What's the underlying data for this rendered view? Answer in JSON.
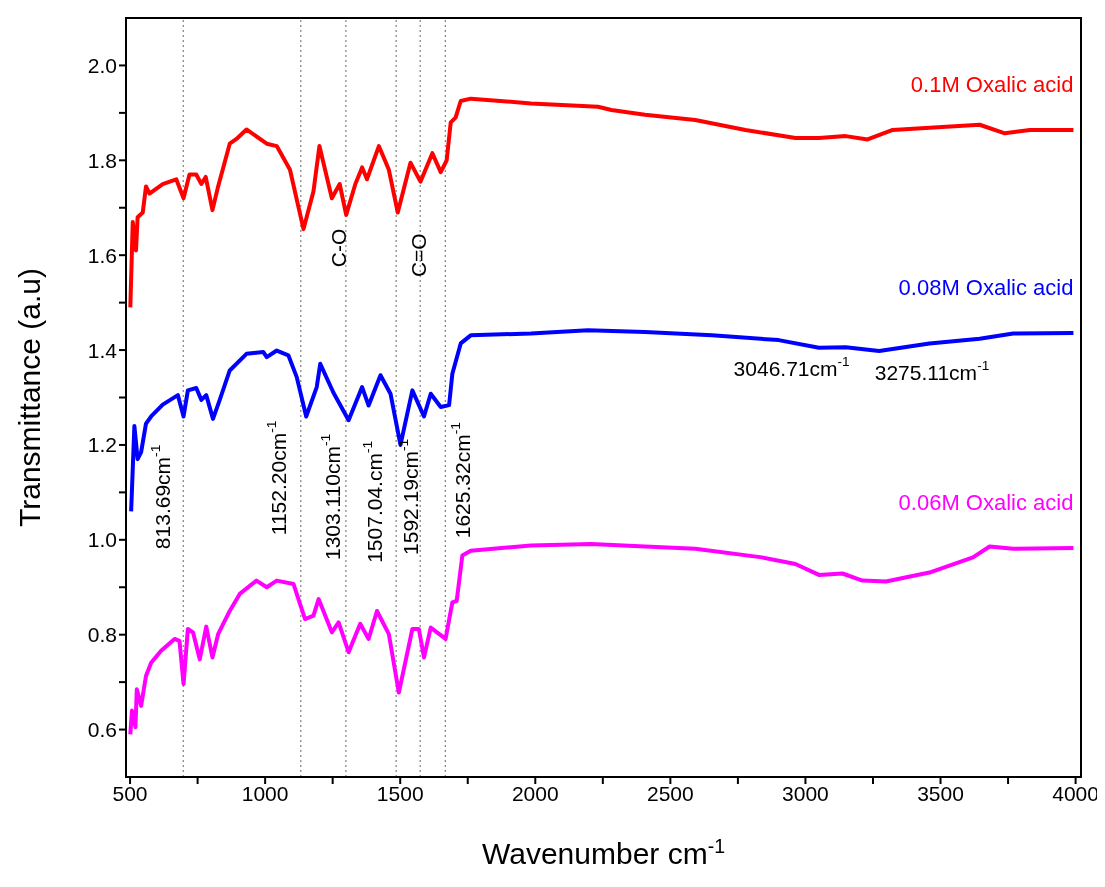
{
  "chart_data": {
    "type": "line",
    "xlabel": "Wavenumber cm$^{-1}$",
    "ylabel": "Transmittance (a.u)",
    "xlim": [
      485,
      4020
    ],
    "ylim": [
      0.5,
      2.1
    ],
    "xticks": [
      500,
      {
        "value": 750,
        "label": null
      },
      1000,
      {
        "value": 1250,
        "label": null
      },
      1500,
      {
        "value": 1750,
        "label": null
      },
      2000,
      {
        "value": 2250,
        "label": null
      },
      2500,
      {
        "value": 2750,
        "label": null
      },
      3000,
      {
        "value": 3250,
        "label": null
      },
      3500,
      {
        "value": 3750,
        "label": null
      },
      4000
    ],
    "yticks": [
      0.6,
      {
        "value": 0.7,
        "label": null
      },
      0.8,
      {
        "value": 0.9,
        "label": null
      },
      {
        "value": 1,
        "label": "1.0"
      },
      {
        "value": 1.1,
        "label": null
      },
      1.2,
      {
        "value": 1.3,
        "label": null
      },
      1.4,
      {
        "value": 1.5,
        "label": null
      },
      1.6,
      {
        "value": 1.7,
        "label": null
      },
      1.8,
      {
        "value": 1.9,
        "label": null
      },
      {
        "value": 2,
        "label": "2.0"
      }
    ],
    "marker": "none",
    "line_style": "solid",
    "series": [
      {
        "name": "0.1M Oxalic acid",
        "color": "#ff0000",
        "x": [
          501,
          510,
          522,
          528,
          547,
          559,
          572,
          621,
          671,
          698,
          720,
          745,
          764,
          780,
          805,
          826,
          869,
          894,
          931,
          1006,
          1043,
          1092,
          1142,
          1179,
          1201,
          1247,
          1276,
          1300,
          1334,
          1359,
          1377,
          1421,
          1458,
          1491,
          1538,
          1575,
          1619,
          1650,
          1672,
          1687,
          1705,
          1724,
          1761,
          1984,
          2232,
          2282,
          2406,
          2592,
          2778,
          2963,
          3050,
          3149,
          3230,
          3323,
          3521,
          3645,
          3738,
          3831,
          3992
        ],
        "values": [
          1.49,
          1.67,
          1.61,
          1.68,
          1.69,
          1.745,
          1.73,
          1.75,
          1.76,
          1.72,
          1.77,
          1.77,
          1.75,
          1.765,
          1.695,
          1.745,
          1.835,
          1.845,
          1.865,
          1.835,
          1.83,
          1.78,
          1.655,
          1.735,
          1.83,
          1.72,
          1.75,
          1.685,
          1.75,
          1.785,
          1.76,
          1.83,
          1.78,
          1.69,
          1.795,
          1.755,
          1.815,
          1.775,
          1.8,
          1.88,
          1.89,
          1.925,
          1.93,
          1.92,
          1.913,
          1.906,
          1.896,
          1.885,
          1.864,
          1.847,
          1.847,
          1.851,
          1.844,
          1.864,
          1.871,
          1.875,
          1.857,
          1.864,
          1.864
        ]
      },
      {
        "name": "0.08M Oxalic acid",
        "color": "#0000ff",
        "x": [
          504,
          516,
          528,
          541,
          559,
          578,
          621,
          677,
          698,
          714,
          745,
          764,
          782,
          807,
          832,
          869,
          931,
          993,
          1006,
          1043,
          1086,
          1117,
          1152,
          1191,
          1204,
          1253,
          1309,
          1359,
          1383,
          1427,
          1464,
          1501,
          1545,
          1588,
          1613,
          1650,
          1681,
          1693,
          1724,
          1761,
          1984,
          2195,
          2406,
          2654,
          2901,
          3050,
          3149,
          3273,
          3459,
          3645,
          3769,
          3992
        ],
        "values": [
          1.06,
          1.24,
          1.17,
          1.185,
          1.245,
          1.26,
          1.285,
          1.305,
          1.26,
          1.315,
          1.32,
          1.295,
          1.305,
          1.255,
          1.295,
          1.357,
          1.392,
          1.396,
          1.385,
          1.399,
          1.389,
          1.343,
          1.26,
          1.322,
          1.371,
          1.31,
          1.252,
          1.322,
          1.283,
          1.347,
          1.308,
          1.2,
          1.315,
          1.26,
          1.308,
          1.28,
          1.284,
          1.35,
          1.414,
          1.431,
          1.435,
          1.442,
          1.438,
          1.431,
          1.421,
          1.405,
          1.406,
          1.398,
          1.414,
          1.424,
          1.435,
          1.436
        ]
      },
      {
        "name": "0.06M Oxalic acid",
        "color": "#ff00ff",
        "x": [
          501,
          507,
          520,
          525,
          541,
          559,
          578,
          615,
          665,
          683,
          698,
          714,
          733,
          758,
          782,
          805,
          826,
          869,
          906,
          968,
          1006,
          1043,
          1105,
          1129,
          1148,
          1179,
          1198,
          1247,
          1272,
          1309,
          1352,
          1383,
          1414,
          1458,
          1495,
          1545,
          1569,
          1588,
          1613,
          1668,
          1693,
          1709,
          1730,
          1761,
          1984,
          2207,
          2406,
          2592,
          2839,
          2963,
          3050,
          3137,
          3211,
          3298,
          3459,
          3620,
          3682,
          3769,
          3992
        ],
        "values": [
          0.59,
          0.64,
          0.605,
          0.685,
          0.65,
          0.713,
          0.741,
          0.766,
          0.791,
          0.787,
          0.696,
          0.812,
          0.805,
          0.748,
          0.817,
          0.752,
          0.801,
          0.85,
          0.886,
          0.914,
          0.9,
          0.914,
          0.907,
          0.865,
          0.833,
          0.84,
          0.875,
          0.805,
          0.826,
          0.763,
          0.823,
          0.791,
          0.85,
          0.801,
          0.678,
          0.812,
          0.812,
          0.752,
          0.815,
          0.791,
          0.868,
          0.871,
          0.967,
          0.977,
          0.988,
          0.991,
          0.986,
          0.981,
          0.963,
          0.949,
          0.926,
          0.929,
          0.914,
          0.912,
          0.931,
          0.963,
          0.986,
          0.981,
          0.983
        ]
      }
    ],
    "ref_lines": [
      {
        "axis": "x",
        "value": 697,
        "color": "#808080",
        "line_style": "dotted"
      },
      {
        "axis": "x",
        "value": 1132,
        "color": "#808080",
        "line_style": "dotted"
      },
      {
        "axis": "x",
        "value": 1299,
        "color": "#808080",
        "line_style": "dotted"
      },
      {
        "axis": "x",
        "value": 1485,
        "color": "#808080",
        "line_style": "dotted"
      },
      {
        "axis": "x",
        "value": 1574,
        "color": "#808080",
        "line_style": "dotted"
      },
      {
        "axis": "x",
        "value": 1667,
        "color": "#808080",
        "line_style": "dotted"
      }
    ],
    "annotations": [
      "813.69cm$^{-1}$",
      "1152.20cm$^{-1}$",
      "1303.110cm$^{-1}$",
      "1507.04.cm$^{-1}$",
      "1592.19cm$^{-1}$",
      "1625.32cm$^{-1}$",
      "C-O",
      "C=O",
      "3046.71cm$^{-1}$",
      "3275.11cm$^{-1}$"
    ]
  }
}
